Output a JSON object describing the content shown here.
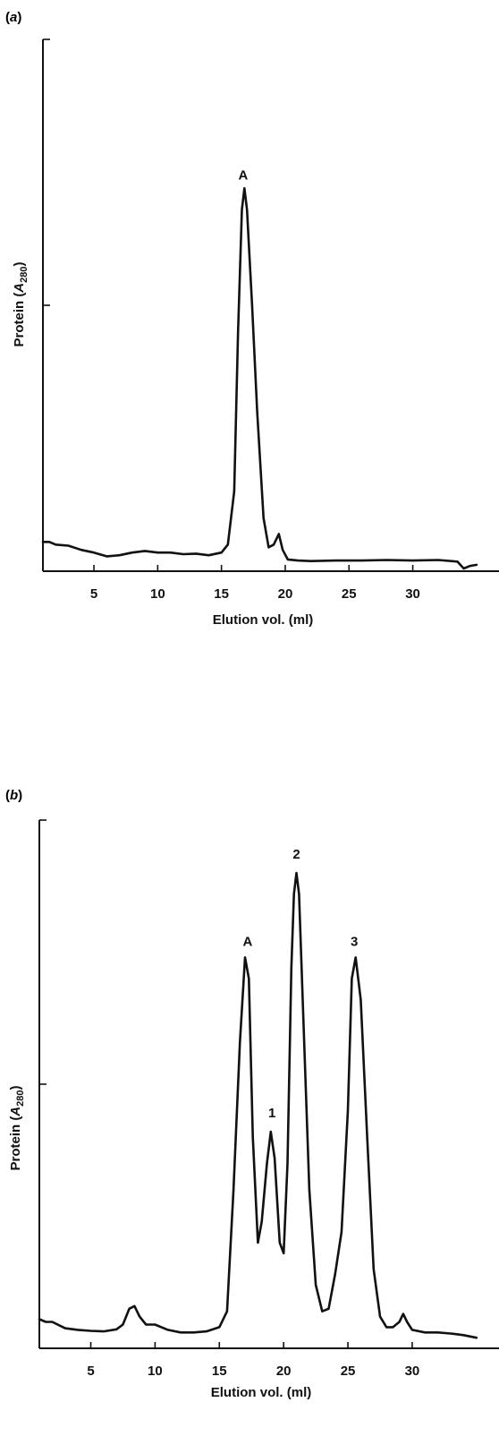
{
  "chart_data": [
    {
      "type": "line",
      "panel_label": "(a)",
      "panel_letter": "a",
      "xlabel": "Elution vol. (ml)",
      "ylabel_main": "Protein (",
      "ylabel_var": "A",
      "ylabel_sub": "280",
      "ylabel_close": ")",
      "x_ticks": [
        5,
        10,
        15,
        20,
        25,
        30
      ],
      "xlim": [
        1,
        35.5
      ],
      "ylim": [
        0,
        1
      ],
      "y_ticks": [
        0.5
      ],
      "grid": false,
      "legend": "none",
      "annotations": [
        {
          "text": "A",
          "x": 16.7,
          "y": 0.72
        }
      ],
      "series": [
        {
          "x": [
            1.0,
            1.5,
            2.0,
            3.0,
            4.0,
            5.0,
            6.0,
            7.0,
            8.0,
            9.0,
            10.0,
            11.0,
            12.0,
            13.0,
            14.0,
            15.0,
            15.5,
            16.0,
            16.3,
            16.6,
            16.8,
            17.0,
            17.4,
            17.8,
            18.3,
            18.7,
            19.1,
            19.5,
            19.8,
            20.2,
            21.0,
            22.0,
            24.0,
            26.0,
            28.0,
            30.0,
            32.0,
            33.5,
            34.0,
            34.5,
            35.0
          ],
          "y": [
            0.055,
            0.055,
            0.05,
            0.048,
            0.04,
            0.035,
            0.028,
            0.03,
            0.035,
            0.038,
            0.035,
            0.035,
            0.032,
            0.033,
            0.03,
            0.035,
            0.05,
            0.15,
            0.45,
            0.68,
            0.72,
            0.68,
            0.5,
            0.3,
            0.1,
            0.045,
            0.05,
            0.07,
            0.04,
            0.022,
            0.02,
            0.019,
            0.02,
            0.02,
            0.021,
            0.02,
            0.021,
            0.018,
            0.005,
            0.01,
            0.012
          ]
        }
      ]
    },
    {
      "type": "line",
      "panel_label": "(b)",
      "panel_letter": "b",
      "xlabel": "Elution vol. (ml)",
      "ylabel_main": "Protein (",
      "ylabel_var": "A",
      "ylabel_sub": "280",
      "ylabel_close": ")",
      "x_ticks": [
        5,
        10,
        15,
        20,
        25,
        30
      ],
      "xlim": [
        1,
        35.5
      ],
      "ylim": [
        0,
        1
      ],
      "y_ticks": [
        0.5
      ],
      "grid": false,
      "legend": "none",
      "annotations": [
        {
          "text": "A",
          "x": 17.2,
          "y": 0.745
        },
        {
          "text": "1",
          "x": 19.1,
          "y": 0.42
        },
        {
          "text": "2",
          "x": 21.0,
          "y": 0.91
        },
        {
          "text": "3",
          "x": 25.5,
          "y": 0.745
        }
      ],
      "series": [
        {
          "x": [
            1.0,
            1.5,
            2.0,
            3.0,
            4.0,
            5.0,
            6.0,
            7.0,
            7.5,
            8.0,
            8.4,
            8.8,
            9.3,
            10.0,
            11.0,
            12.0,
            13.0,
            14.0,
            15.0,
            15.6,
            16.1,
            16.6,
            17.0,
            17.3,
            17.6,
            18.0,
            18.3,
            18.7,
            19.0,
            19.3,
            19.7,
            20.0,
            20.3,
            20.6,
            20.8,
            21.0,
            21.2,
            21.5,
            22.0,
            22.5,
            23.0,
            23.5,
            24.0,
            24.5,
            25.0,
            25.3,
            25.6,
            26.0,
            26.5,
            27.0,
            27.5,
            28.0,
            28.5,
            29.0,
            29.3,
            29.6,
            30.0,
            31.0,
            32.0,
            33.0,
            34.0,
            35.0
          ],
          "y": [
            0.055,
            0.05,
            0.05,
            0.038,
            0.035,
            0.033,
            0.032,
            0.036,
            0.045,
            0.075,
            0.08,
            0.06,
            0.045,
            0.045,
            0.035,
            0.03,
            0.03,
            0.032,
            0.04,
            0.07,
            0.3,
            0.58,
            0.74,
            0.7,
            0.4,
            0.2,
            0.24,
            0.35,
            0.41,
            0.36,
            0.2,
            0.18,
            0.35,
            0.72,
            0.86,
            0.9,
            0.86,
            0.65,
            0.3,
            0.12,
            0.07,
            0.075,
            0.14,
            0.22,
            0.45,
            0.7,
            0.74,
            0.66,
            0.4,
            0.15,
            0.06,
            0.04,
            0.04,
            0.05,
            0.065,
            0.05,
            0.035,
            0.03,
            0.03,
            0.028,
            0.025,
            0.02
          ]
        }
      ]
    }
  ]
}
